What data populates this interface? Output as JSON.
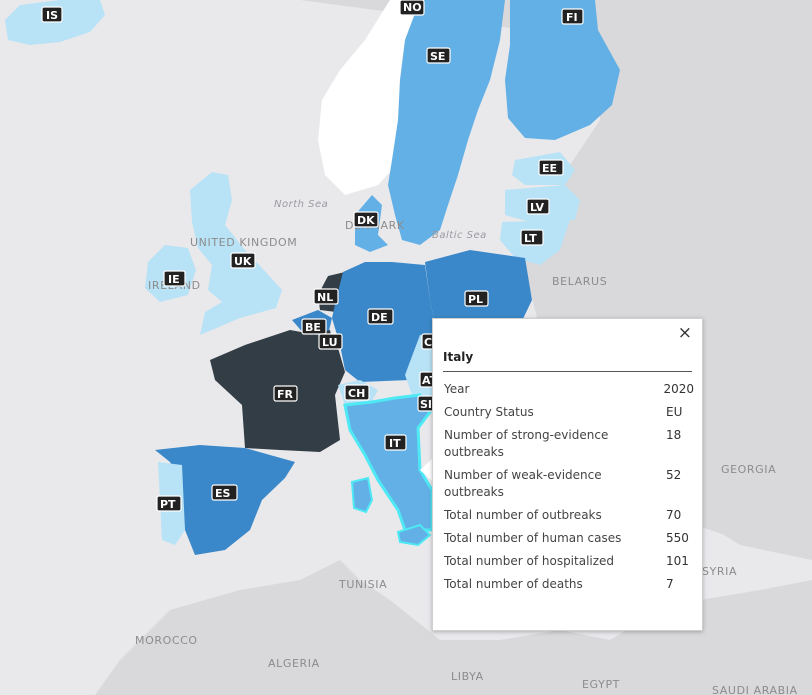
{
  "map": {
    "geo_labels": [
      {
        "id": "united-kingdom",
        "text": "UNITED KINGDOM"
      },
      {
        "id": "ireland",
        "text": "IRELAND"
      },
      {
        "id": "denmark",
        "text": "DENMARK"
      },
      {
        "id": "belarus",
        "text": "BELARUS"
      },
      {
        "id": "georgia",
        "text": "GEORGIA"
      },
      {
        "id": "syria",
        "text": "SYRIA"
      },
      {
        "id": "tunisia",
        "text": "TUNISIA"
      },
      {
        "id": "morocco",
        "text": "MOROCCO"
      },
      {
        "id": "algeria",
        "text": "ALGERIA"
      },
      {
        "id": "libya",
        "text": "LIBYA"
      },
      {
        "id": "egypt",
        "text": "EGYPT"
      },
      {
        "id": "saudi-arabia",
        "text": "SAUDI ARABIA"
      }
    ],
    "sea_labels": [
      {
        "id": "north-sea",
        "text": "North Sea"
      },
      {
        "id": "baltic-sea",
        "text": "Baltic Sea"
      }
    ],
    "country_codes": [
      "IS",
      "NO",
      "SE",
      "FI",
      "EE",
      "LV",
      "LT",
      "DK",
      "IE",
      "UK",
      "NL",
      "BE",
      "LU",
      "DE",
      "PL",
      "FR",
      "CH",
      "AT",
      "SI",
      "IT",
      "ES",
      "PT",
      "CZ"
    ],
    "selected_country": "IT",
    "colors": {
      "land": "#d9d8db",
      "water": "#e9e9ec",
      "no_data": "#ffffff",
      "very_light": "#b8e2f6",
      "light": "#62b0e6",
      "medium": "#3a88c9",
      "dark": "#323d45",
      "highlight": "#4ee9f4"
    }
  },
  "popup": {
    "close_icon": "×",
    "title": "Italy",
    "rows": [
      {
        "key": "Year",
        "value": "2020"
      },
      {
        "key": "Country Status",
        "value": "EU"
      },
      {
        "key": "Number of strong-evidence outbreaks",
        "value": "18"
      },
      {
        "key": "Number of weak-evidence outbreaks",
        "value": "52"
      },
      {
        "key": "Total number of outbreaks",
        "value": "70"
      },
      {
        "key": "Total number of human cases",
        "value": "550"
      },
      {
        "key": "Total number of hospitalized",
        "value": "101"
      },
      {
        "key": "Total number of deaths",
        "value": "7"
      }
    ]
  }
}
